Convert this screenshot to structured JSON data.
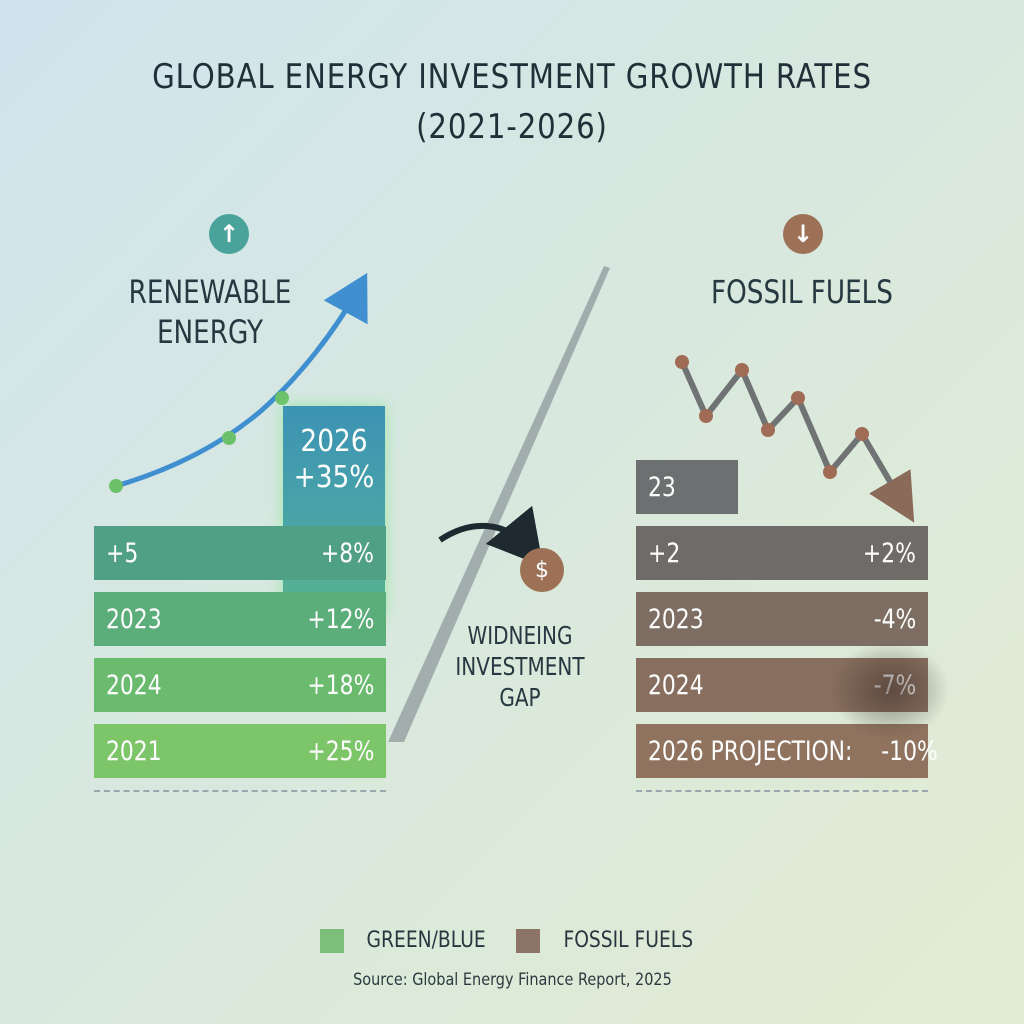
{
  "title_line1": "GLOBAL ENERGY INVESTMENT GROWTH RATES",
  "title_line2": "(2021-2026)",
  "renewable": {
    "label_line1": "RENEWABLE",
    "label_line2": "ENERGY",
    "icon": "arrow-up-icon",
    "highlight_year": "2026",
    "highlight_value": "+35%"
  },
  "fossil": {
    "label": "FOSSIL FUELS",
    "icon": "arrow-down-icon",
    "top_box": "23"
  },
  "gap_label_line1": "WIDNEING",
  "gap_label_line2": "INVESTMENT",
  "gap_label_line3": "GAP",
  "dollar_icon": "dollar-coin-icon",
  "dollar_symbol": "$",
  "legend": [
    {
      "label": "GREEN/BLUE",
      "color": "#7cbf7a"
    },
    {
      "label": "FOSSIL FUELS",
      "color": "#8c7566"
    }
  ],
  "source": "Source: Global Energy Finance Report, 2025",
  "colors": {
    "renewable_up_icon": "#4aa39a",
    "fossil_down_icon": "#9c7156",
    "curve": "#3f8fd1"
  },
  "chart_data": {
    "type": "bar",
    "series": [
      {
        "name": "RENEWABLE ENERGY",
        "rows": [
          {
            "label": "+5",
            "value_label": "+8%",
            "value": 8
          },
          {
            "label": "2023",
            "value_label": "+12%",
            "value": 12
          },
          {
            "label": "2024",
            "value_label": "+18%",
            "value": 18
          },
          {
            "label": "2021",
            "value_label": "+25%",
            "value": 25
          }
        ]
      },
      {
        "name": "FOSSIL FUELS",
        "rows": [
          {
            "label": "+2",
            "value_label": "+2%",
            "value": 2
          },
          {
            "label": "2023",
            "value_label": "-4%",
            "value": -4
          },
          {
            "label": "2024",
            "value_label": "-7%",
            "value": -7
          },
          {
            "label": "2026 PROJECTION:",
            "value_label": "-10%",
            "value": -10
          }
        ]
      }
    ]
  }
}
